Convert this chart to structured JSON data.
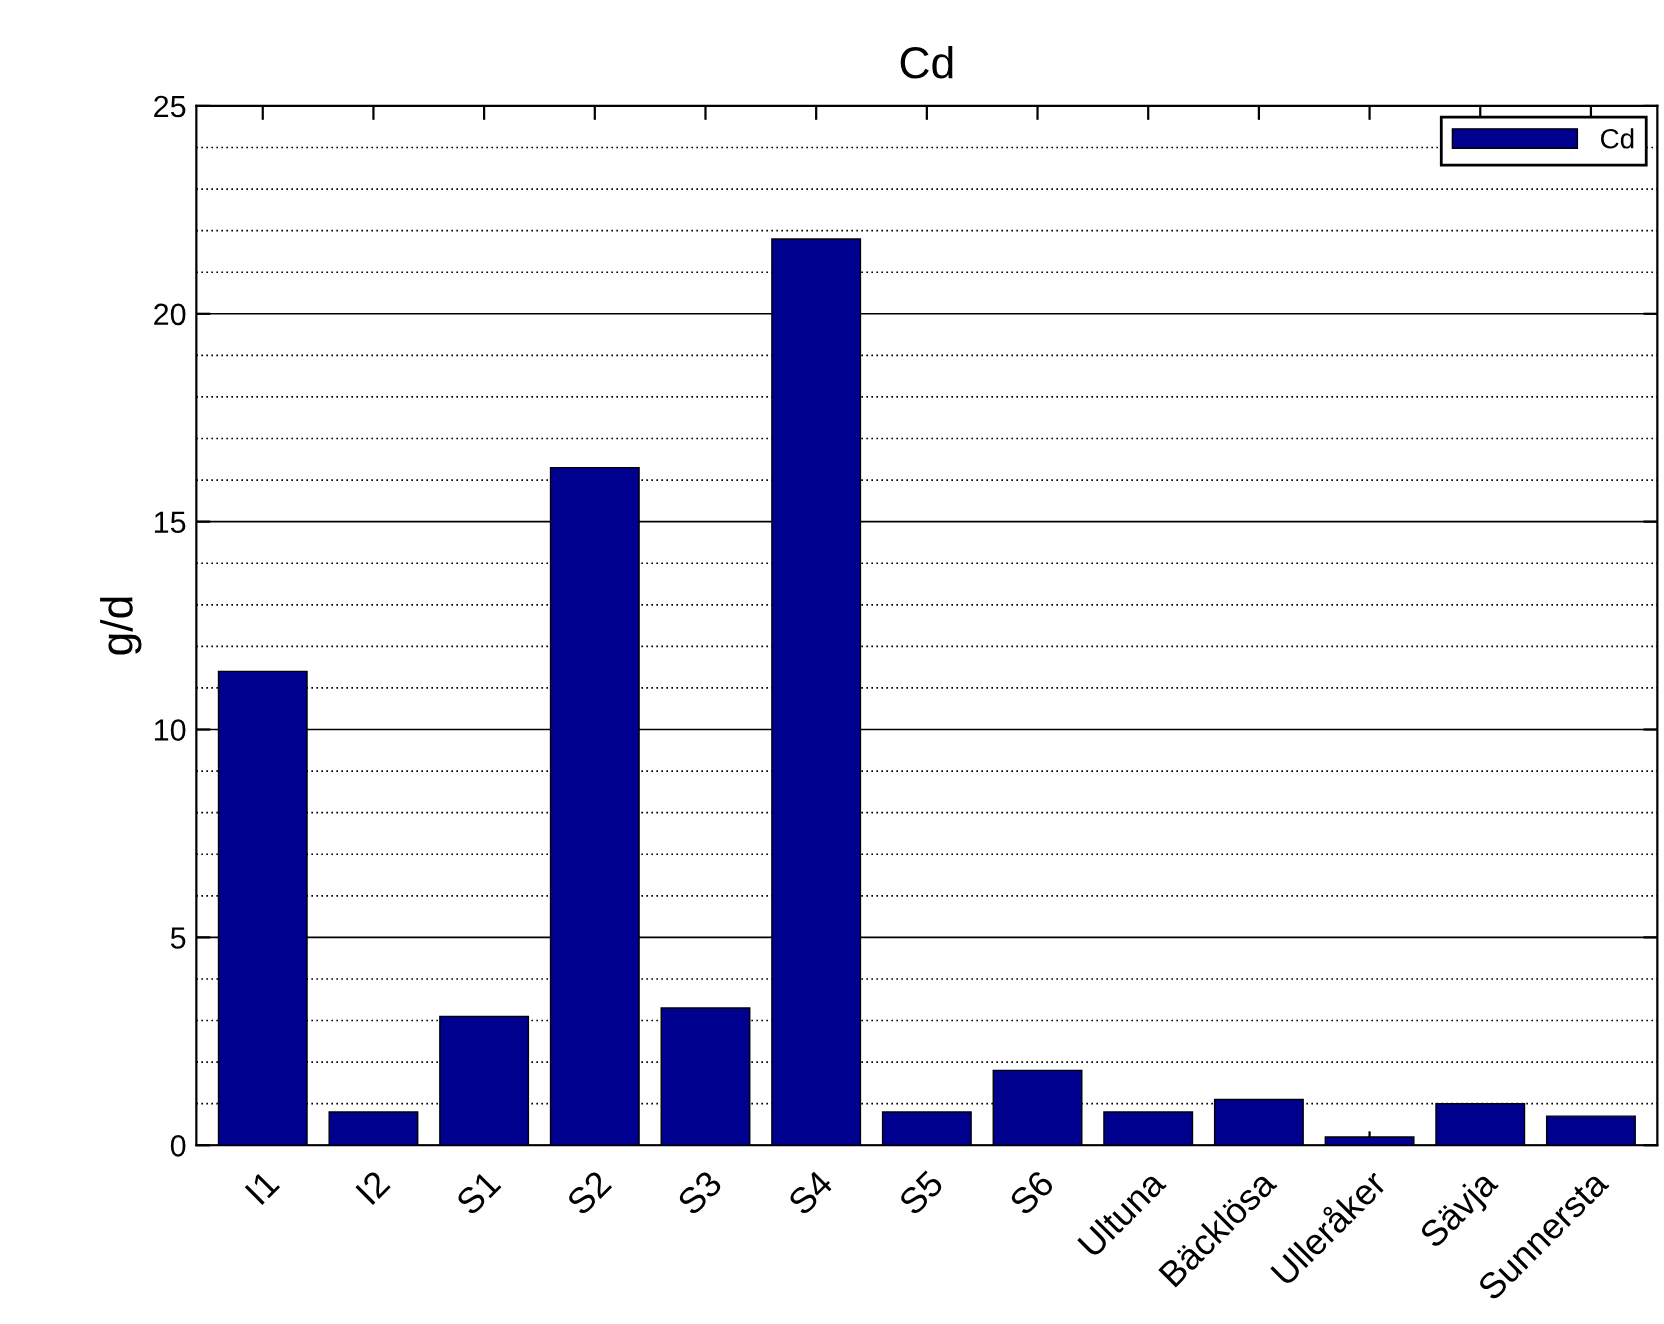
{
  "chart_data": {
    "type": "bar",
    "title": "Cd",
    "ylabel": "g/d",
    "categories": [
      "I1",
      "I2",
      "S1",
      "S2",
      "S3",
      "S4",
      "S5",
      "S6",
      "Ultuna",
      "Bäcklösa",
      "Ulleråker",
      "Sävja",
      "Sunnersta"
    ],
    "series": [
      {
        "name": "Cd",
        "color": "#00008f",
        "values": [
          11.4,
          0.8,
          3.1,
          16.3,
          3.3,
          21.8,
          0.8,
          1.8,
          0.8,
          1.1,
          0.2,
          1.0,
          0.7
        ]
      }
    ],
    "ylim": [
      0,
      25
    ],
    "yticks": [
      0,
      5,
      10,
      15,
      20,
      25
    ],
    "grid": "y",
    "legend": "top right"
  }
}
